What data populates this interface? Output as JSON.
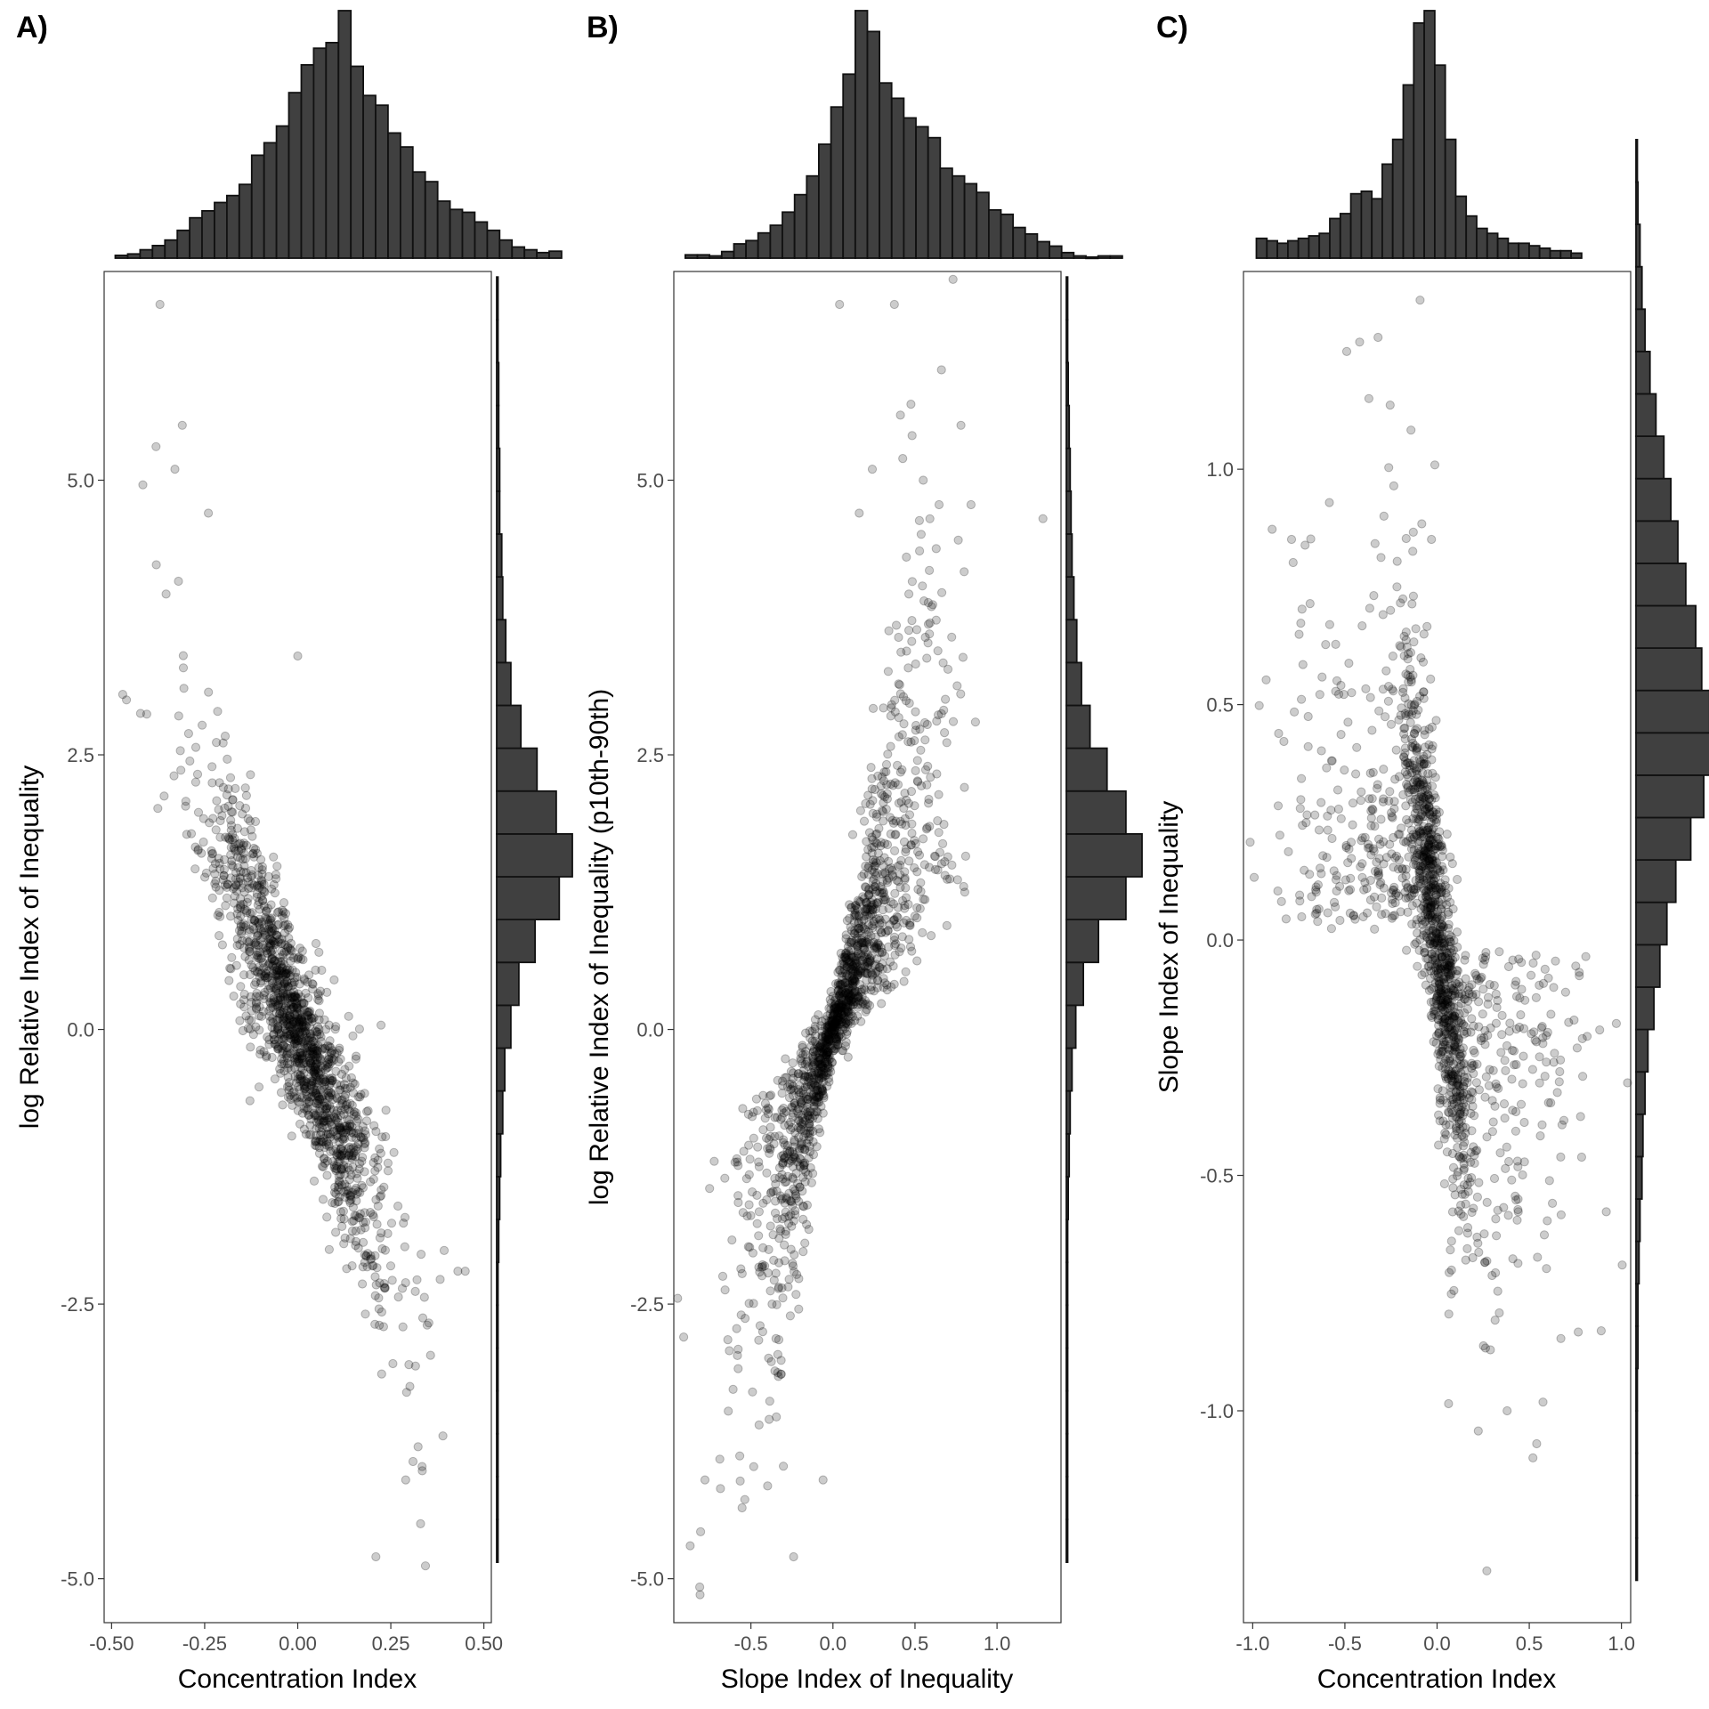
{
  "chart_data": [
    {
      "panel": "A)",
      "type": "scatter",
      "xlabel": "Concentration Index",
      "ylabel": "log Relative Index of Inequality",
      "xlim": [
        -0.52,
        0.52
      ],
      "ylim": [
        -5.4,
        6.9
      ],
      "xticks": [
        "-0.50",
        "-0.25",
        "0.00",
        "0.25",
        "0.50"
      ],
      "xtick_values": [
        -0.5,
        -0.25,
        0,
        0.25,
        0.5
      ],
      "yticks": [
        "-5.0",
        "-2.5",
        "0.0",
        "2.5",
        "5.0"
      ],
      "ytick_values": [
        -5,
        -2.5,
        0,
        2.5,
        5
      ],
      "n_points": 1500,
      "point_pattern": "negative linear relationship, dense near origin",
      "notable_points": [
        [
          -0.37,
          6.6
        ],
        [
          -0.31,
          5.5
        ],
        [
          -0.33,
          5.1
        ],
        [
          -0.24,
          4.7
        ],
        [
          -0.46,
          3.0
        ],
        [
          -0.47,
          3.05
        ],
        [
          0.0,
          3.4
        ],
        [
          0.43,
          -2.2
        ],
        [
          0.45,
          -2.2
        ],
        [
          0.21,
          -4.8
        ],
        [
          0.33,
          -4.5
        ],
        [
          0.39,
          -3.7
        ],
        [
          0.29,
          -4.1
        ]
      ],
      "top_histogram": {
        "bin_start": -0.49,
        "bin_width": 0.0333,
        "counts": [
          2,
          3,
          6,
          9,
          13,
          20,
          29,
          34,
          40,
          45,
          53,
          74,
          83,
          95,
          119,
          139,
          151,
          155,
          178,
          138,
          117,
          110,
          90,
          80,
          62,
          55,
          41,
          35,
          33,
          26,
          20,
          13,
          8,
          6,
          4,
          5
        ]
      },
      "right_histogram": {
        "bin_start": -4.85,
        "bin_width": 0.39,
        "counts": [
          1,
          1,
          1,
          1,
          1,
          1,
          1,
          2,
          3,
          4,
          6,
          8,
          14,
          22,
          38,
          62,
          75,
          59,
          40,
          24,
          14,
          9,
          6,
          5,
          3,
          3,
          2,
          2,
          1,
          1
        ]
      }
    },
    {
      "panel": "B)",
      "type": "scatter",
      "xlabel": "Slope Index of Inequality",
      "ylabel": "log Relative Index of Inequality (p10th-90th)",
      "xlim": [
        -0.97,
        1.39
      ],
      "ylim": [
        -5.4,
        6.9
      ],
      "xticks": [
        "-0.5",
        "0.0",
        "0.5",
        "1.0"
      ],
      "xtick_values": [
        -0.5,
        0,
        0.5,
        1.0
      ],
      "yticks": [
        "-5.0",
        "-2.5",
        "0.0",
        "2.5",
        "5.0"
      ],
      "ytick_values": [
        -5,
        -2.5,
        0,
        2.5,
        5
      ],
      "n_points": 1500,
      "point_pattern": "bow-tie shape through origin, positive relationship",
      "notable_points": [
        [
          0.04,
          6.6
        ],
        [
          0.78,
          5.5
        ],
        [
          0.24,
          5.1
        ],
        [
          0.55,
          5.0
        ],
        [
          1.28,
          4.65
        ],
        [
          0.16,
          4.7
        ],
        [
          -0.87,
          -4.7
        ],
        [
          -0.24,
          -4.8
        ],
        [
          -0.06,
          -4.1
        ],
        [
          -0.78,
          -4.1
        ],
        [
          -0.91,
          -2.8
        ],
        [
          -0.45,
          -3.6
        ]
      ],
      "top_histogram": {
        "bin_start": -0.9,
        "bin_width": 0.074,
        "counts": [
          3,
          3,
          2,
          6,
          13,
          16,
          23,
          30,
          42,
          58,
          75,
          104,
          138,
          168,
          226,
          207,
          160,
          146,
          128,
          120,
          110,
          82,
          75,
          68,
          60,
          44,
          40,
          28,
          22,
          15,
          11,
          5,
          2,
          1,
          2,
          2
        ]
      },
      "right_histogram": {
        "bin_start": -4.85,
        "bin_width": 0.39,
        "counts": [
          1,
          1,
          1,
          1,
          1,
          1,
          1,
          1,
          2,
          3,
          4,
          6,
          10,
          18,
          34,
          63,
          80,
          63,
          43,
          25,
          16,
          11,
          8,
          6,
          5,
          4,
          3,
          2,
          1,
          1
        ]
      }
    },
    {
      "panel": "C)",
      "type": "scatter",
      "xlabel": "Concentration Index",
      "ylabel": "Slope Index of Inequality",
      "xlim": [
        -1.05,
        1.05
      ],
      "ylim": [
        -1.45,
        1.42
      ],
      "xticks": [
        "-1.0",
        "-0.5",
        "0.0",
        "0.5",
        "1.0"
      ],
      "xtick_values": [
        -1.0,
        -0.5,
        0,
        0.5,
        1.0
      ],
      "yticks": [
        "-1.0",
        "-0.5",
        "0.0",
        "0.5",
        "1.0"
      ],
      "ytick_values": [
        -1.0,
        -0.5,
        0,
        0.5,
        1.0
      ],
      "n_points": 1500,
      "point_pattern": "steep negative core with wide spread on each side",
      "notable_points": [
        [
          -0.42,
          1.27
        ],
        [
          -0.49,
          1.25
        ],
        [
          -0.32,
          1.28
        ],
        [
          -0.37,
          1.15
        ],
        [
          0.27,
          -1.34
        ],
        [
          0.52,
          -1.1
        ],
        [
          0.54,
          -1.07
        ],
        [
          0.38,
          -1.0
        ],
        [
          0.89,
          -0.83
        ]
      ],
      "top_histogram": {
        "bin_start": -0.98,
        "bin_width": 0.0569,
        "counts": [
          8,
          7,
          6,
          7,
          8,
          9,
          10,
          16,
          18,
          26,
          27,
          24,
          38,
          48,
          70,
          95,
          100,
          78,
          48,
          25,
          17,
          12,
          10,
          8,
          6,
          6,
          5,
          4,
          3,
          3,
          2
        ]
      },
      "right_histogram": {
        "bin_start": -1.36,
        "bin_width": 0.09,
        "counts": [
          1,
          1,
          1,
          1,
          1,
          2,
          2,
          3,
          4,
          6,
          7,
          9,
          12,
          18,
          24,
          31,
          40,
          55,
          68,
          76,
          74,
          66,
          60,
          50,
          42,
          35,
          28,
          20,
          14,
          9,
          6,
          4,
          2,
          1
        ]
      }
    }
  ]
}
